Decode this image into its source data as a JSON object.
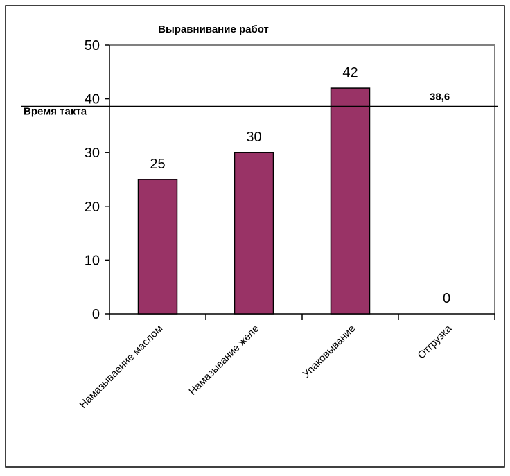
{
  "chart_data": {
    "type": "bar",
    "title": "Выравнивание работ",
    "categories": [
      "Намазываение маслом",
      "Намазывание желе",
      "Упаковывание",
      "Отгрузка"
    ],
    "series": [
      {
        "values": [
          25,
          30,
          42,
          0
        ]
      }
    ],
    "data_labels": [
      "25",
      "30",
      "42",
      "0"
    ],
    "ylim": [
      0,
      50
    ],
    "yticks": [
      "0",
      "10",
      "20",
      "30",
      "40",
      "50"
    ],
    "xlabel": "",
    "ylabel": "",
    "grid": false,
    "reference_line": {
      "label": "Время такта",
      "value": 38.6,
      "value_label": "38,6"
    },
    "colors": {
      "bar": "#993366",
      "outline": "#000000",
      "axis": "#000000",
      "plot_border": "#808080"
    }
  }
}
